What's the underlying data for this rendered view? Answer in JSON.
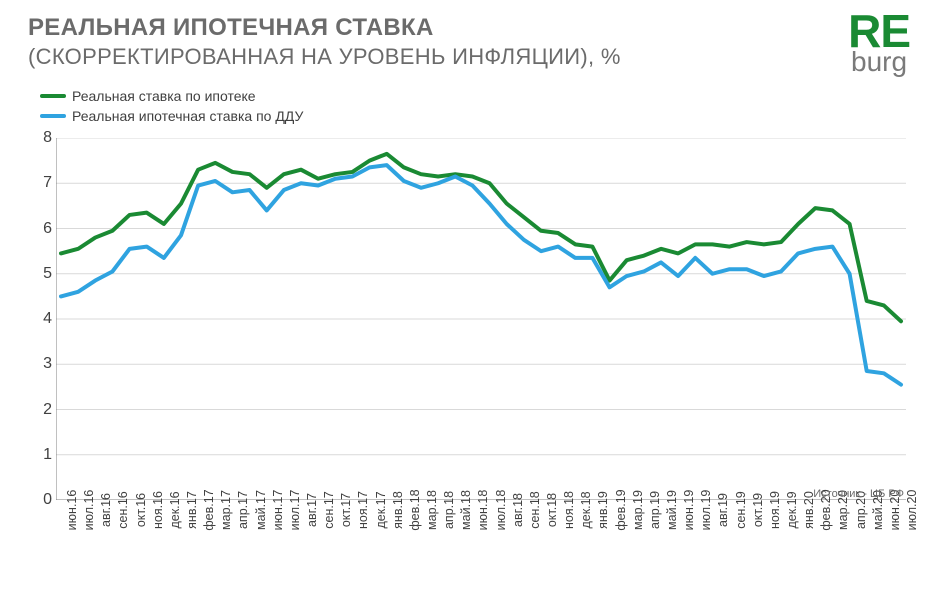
{
  "header": {
    "title": "РЕАЛЬНАЯ ИПОТЕЧНАЯ СТАВКА",
    "subtitle": "(СКОРРЕКТИРОВАННАЯ НА УРОВЕНЬ  ИНФЛЯЦИИ), %"
  },
  "logo": {
    "top": "RE",
    "bottom": "burg"
  },
  "source": "Источник  - ЦБ РФ",
  "chart": {
    "type": "line",
    "background_color": "#ffffff",
    "grid_color": "#d9d9d9",
    "axis_color": "#808080",
    "label_color": "#404040",
    "label_fontsize": 16,
    "xlabel_fontsize": 12.5,
    "line_width": 4,
    "ylim": [
      0,
      8
    ],
    "ytick_step": 1,
    "xlabels": [
      "июн.16",
      "июл.16",
      "авг.16",
      "сен.16",
      "окт.16",
      "ноя.16",
      "дек.16",
      "янв.17",
      "фев.17",
      "мар.17",
      "апр.17",
      "май.17",
      "июн.17",
      "июл.17",
      "авг.17",
      "сен.17",
      "окт.17",
      "ноя.17",
      "дек.17",
      "янв.18",
      "фев.18",
      "мар.18",
      "апр.18",
      "май.18",
      "июн.18",
      "июл.18",
      "авг.18",
      "сен.18",
      "окт.18",
      "ноя.18",
      "дек.18",
      "янв.19",
      "фев.19",
      "мар.19",
      "апр.19",
      "май.19",
      "июн.19",
      "июл.19",
      "авг.19",
      "сен.19",
      "окт.19",
      "ноя.19",
      "дек.19",
      "янв.20",
      "фев.20",
      "мар.20",
      "апр.20",
      "май.20",
      "июн.20",
      "июл.20"
    ],
    "series": [
      {
        "name": "Реальная ставка по ипотеке",
        "color": "#1a8a33",
        "values": [
          5.45,
          5.55,
          5.8,
          5.95,
          6.3,
          6.35,
          6.1,
          6.55,
          7.3,
          7.45,
          7.25,
          7.2,
          6.9,
          7.2,
          7.3,
          7.1,
          7.2,
          7.25,
          7.5,
          7.65,
          7.35,
          7.2,
          7.15,
          7.2,
          7.15,
          7.0,
          6.55,
          6.25,
          5.95,
          5.9,
          5.65,
          5.6,
          4.85,
          5.3,
          5.4,
          5.55,
          5.45,
          5.65,
          5.65,
          5.6,
          5.7,
          5.65,
          5.7,
          6.1,
          6.45,
          6.4,
          6.1,
          4.4,
          4.3,
          3.95
        ]
      },
      {
        "name": "Реальная ипотечная ставка по ДДУ",
        "color": "#2fa3e0",
        "values": [
          4.5,
          4.6,
          4.85,
          5.05,
          5.55,
          5.6,
          5.35,
          5.85,
          6.95,
          7.05,
          6.8,
          6.85,
          6.4,
          6.85,
          7.0,
          6.95,
          7.1,
          7.15,
          7.35,
          7.4,
          7.05,
          6.9,
          7.0,
          7.15,
          6.95,
          6.55,
          6.1,
          5.75,
          5.5,
          5.6,
          5.35,
          5.35,
          4.7,
          4.95,
          5.05,
          5.25,
          4.95,
          5.35,
          5.0,
          5.1,
          5.1,
          4.95,
          5.05,
          5.45,
          5.55,
          5.6,
          5.0,
          2.85,
          2.8,
          2.55
        ]
      }
    ]
  }
}
